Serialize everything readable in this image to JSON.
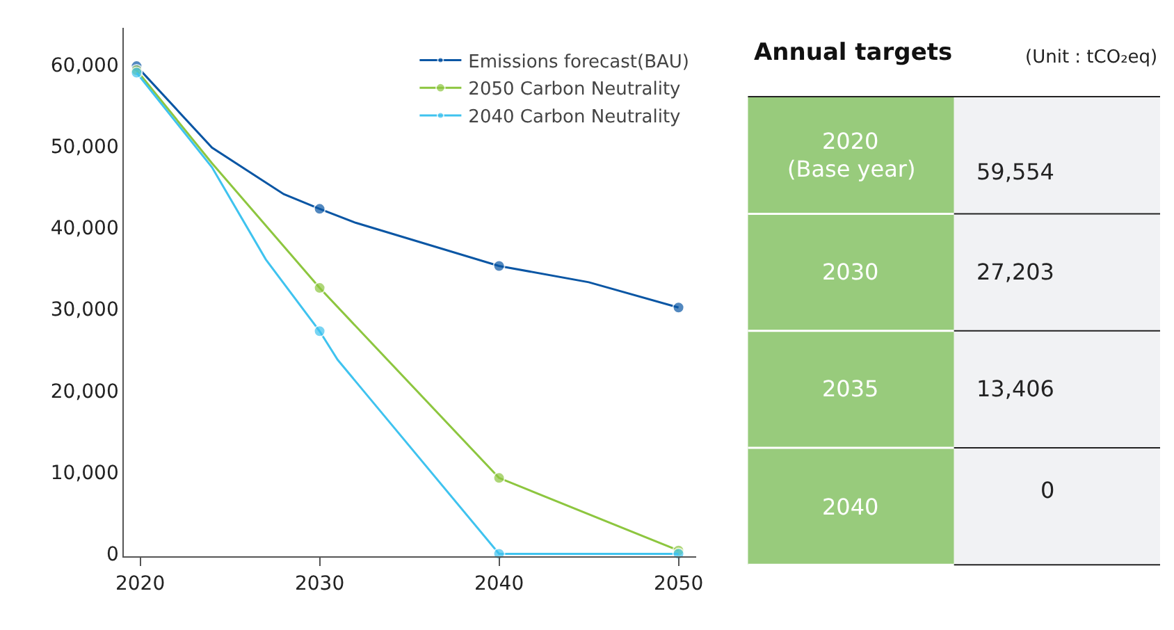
{
  "chart_data": [
    {
      "type": "line",
      "xlim": [
        2019.1,
        2051
      ],
      "ylim": [
        -300,
        64500
      ],
      "xticks": [
        2020,
        2030,
        2040,
        2050
      ],
      "yticks": [
        {
          "value": 0,
          "label": "0"
        },
        {
          "value": 10000,
          "label": "10,000"
        },
        {
          "value": 20000,
          "label": "20,000"
        },
        {
          "value": 30000,
          "label": "30,000"
        },
        {
          "value": 40000,
          "label": "40,000"
        },
        {
          "value": 50000,
          "label": "50,000"
        },
        {
          "value": 60000,
          "label": "60,000"
        }
      ],
      "legend": "top right",
      "marker": "circle",
      "line_style": "solid",
      "series": [
        {
          "name": "Emissions forecast(BAU)",
          "color": "#0a56a4",
          "x": [
            2019.8,
            2024,
            2028,
            2030,
            2032,
            2040,
            2045,
            2050
          ],
          "values": [
            59800,
            49800,
            44100,
            42300,
            40600,
            35300,
            33300,
            30200
          ]
        },
        {
          "name": "2050 Carbon Neutrality",
          "color": "#8dc63f",
          "x": [
            2019.8,
            2024,
            2030,
            2040,
            2050
          ],
          "values": [
            59300,
            47900,
            32600,
            9300,
            400
          ]
        },
        {
          "name": "2040 Carbon Neutrality",
          "color": "#3fc3ef",
          "x": [
            2019.8,
            2024,
            2027,
            2030,
            2031,
            2040,
            2050
          ],
          "values": [
            59000,
            47400,
            36100,
            27300,
            23800,
            0,
            0
          ]
        }
      ]
    },
    {
      "type": "other",
      "title": "Annual targets",
      "subtitle": "(Unit : tCO₂eq)",
      "categories": [
        "2020\n(Base year)",
        "2030",
        "2035",
        "2040"
      ],
      "value_labels": [
        "59,554",
        "27,203",
        "13,406",
        "0"
      ]
    }
  ]
}
